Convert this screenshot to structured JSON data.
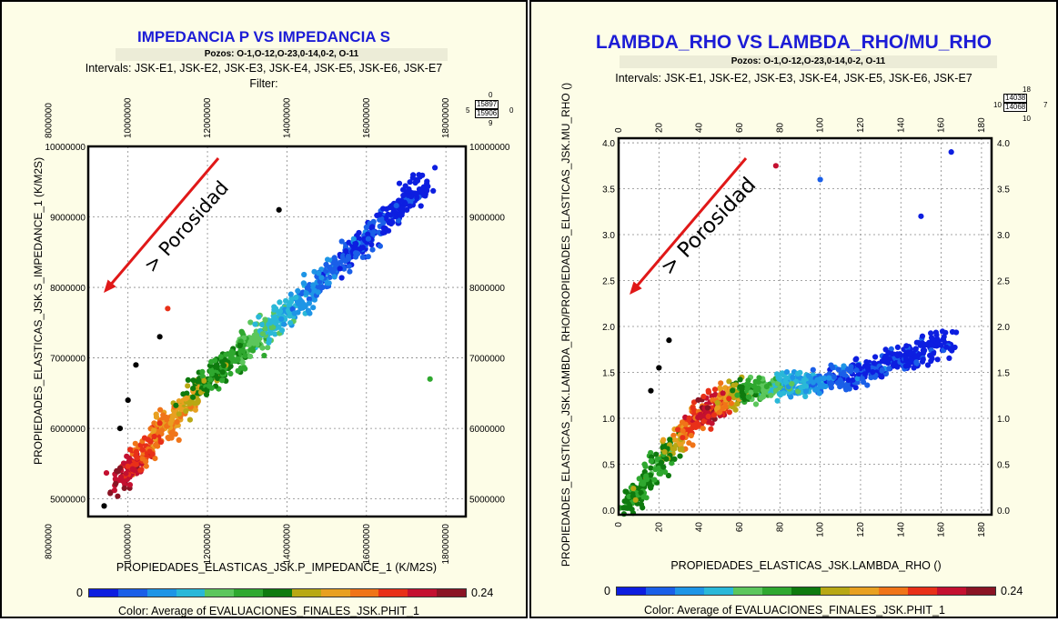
{
  "color_scale": {
    "min_label": "0",
    "max_label": "0.24",
    "colors": [
      "#0d1ee0",
      "#1a5fe8",
      "#1e95e6",
      "#2ab8d8",
      "#5cc65c",
      "#2fa82f",
      "#0e7a0e",
      "#b8a814",
      "#e8a020",
      "#f07418",
      "#e83018",
      "#c41030",
      "#8a1424"
    ]
  },
  "annotation_text": "> Porosidad",
  "annotation_color": "#e01818",
  "panels": [
    {
      "title": "IMPEDANCIA P VS IMPEDANCIA S",
      "pozos": "Pozos:  O-1,O-12,O-23,0-14,0-2, O-11",
      "intervals": "Intervals: JSK-E1, JSK-E2, JSK-E3, JSK-E4, JSK-E5, JSK-E6, JSK-E7",
      "filter": "Filter:",
      "counts": {
        "top": "0",
        "left": "5",
        "upper": "15897",
        "lower": "15906",
        "right": "0",
        "bottom": "9"
      },
      "xlabel": "PROPIEDADES_ELASTICAS_JSK.P_IMPEDANCE_1 (K/M2S)",
      "ylabel": "PROPIEDADES_ELASTICAS_JSK.S_IMPEDANCE_1 (K/M2S)",
      "color_caption": "Color: Average of EVALUACIONES_FINALES_JSK.PHIT_1"
    },
    {
      "title": "LAMBDA_RHO VS LAMBDA_RHO/MU_RHO",
      "pozos": "Pozos:  O-1,O-12,O-23,0-14,0-2, O-11",
      "intervals": "Intervals: JSK-E1, JSK-E2, JSK-E3, JSK-E4, JSK-E5, JSK-E6, JSK-E7",
      "counts": {
        "top": "18",
        "left": "10",
        "upper": "14038",
        "lower": "14068",
        "right": "7",
        "bottom": "10"
      },
      "xlabel": "PROPIEDADES_ELASTICAS_JSK.LAMBDA_RHO ()",
      "ylabel": "PROPIEDADES_ELASTICAS_JSK.LAMBDA_RHO/PROPIEDADES_ELASTICAS_JSK.MU_RHO ()",
      "color_caption": "Color:  Average of EVALUACIONES_FINALES_JSK.PHIT_1"
    }
  ],
  "chart_data": [
    {
      "type": "scatter",
      "title": "IMPEDANCIA P VS IMPEDANCIA S",
      "xlabel": "PROPIEDADES_ELASTICAS_JSK.P_IMPEDANCE_1 (K/M2S)",
      "ylabel": "PROPIEDADES_ELASTICAS_JSK.S_IMPEDANCE_1 (K/M2S)",
      "xlim": [
        9000000,
        18500000
      ],
      "ylim": [
        4750000,
        10000000
      ],
      "x_ticks": [
        8000000,
        10000000,
        12000000,
        14000000,
        16000000,
        18000000
      ],
      "x_tick_labels": [
        "8000000",
        "10000000",
        "12000000",
        "14000000",
        "16000000",
        "18000000"
      ],
      "y_ticks": [
        5000000,
        6000000,
        7000000,
        8000000,
        9000000,
        10000000
      ],
      "y_tick_labels": [
        "5000000",
        "6000000",
        "7000000",
        "8000000",
        "9000000",
        "10000000"
      ],
      "grid": true,
      "color_range": [
        0,
        0.24
      ],
      "trend": [
        {
          "x": 9700000,
          "y": 5200000,
          "phit": 0.22
        },
        {
          "x": 10500000,
          "y": 5700000,
          "phit": 0.19
        },
        {
          "x": 11200000,
          "y": 6200000,
          "phit": 0.16
        },
        {
          "x": 12000000,
          "y": 6700000,
          "phit": 0.12
        },
        {
          "x": 12900000,
          "y": 7100000,
          "phit": 0.1
        },
        {
          "x": 13700000,
          "y": 7500000,
          "phit": 0.07
        },
        {
          "x": 14600000,
          "y": 7950000,
          "phit": 0.04
        },
        {
          "x": 15600000,
          "y": 8500000,
          "phit": 0.02
        },
        {
          "x": 16600000,
          "y": 9000000,
          "phit": 0.01
        },
        {
          "x": 17500000,
          "y": 9500000,
          "phit": 0.0
        }
      ],
      "outliers": [
        {
          "x": 9400000,
          "y": 4900000,
          "phit": 0.24
        },
        {
          "x": 9800000,
          "y": 6000000,
          "phit": 0.24
        },
        {
          "x": 10000000,
          "y": 6400000,
          "phit": 0.24
        },
        {
          "x": 10200000,
          "y": 6900000,
          "phit": 0.24
        },
        {
          "x": 10800000,
          "y": 7300000,
          "phit": 0.24
        },
        {
          "x": 11000000,
          "y": 7700000,
          "phit": 0.2
        },
        {
          "x": 13800000,
          "y": 9100000,
          "phit": 0.24
        },
        {
          "x": 17600000,
          "y": 6700000,
          "phit": 0.1
        }
      ]
    },
    {
      "type": "scatter",
      "title": "LAMBDA_RHO VS LAMBDA_RHO/MU_RHO",
      "xlabel": "PROPIEDADES_ELASTICAS_JSK.LAMBDA_RHO ()",
      "ylabel": "PROPIEDADES_ELASTICAS_JSK.LAMBDA_RHO/PROPIEDADES_ELASTICAS_JSK.MU_RHO ()",
      "xlim": [
        0,
        185
      ],
      "ylim": [
        -0.05,
        4.05
      ],
      "x_ticks": [
        0,
        20,
        40,
        60,
        80,
        100,
        120,
        140,
        160,
        180
      ],
      "x_tick_labels": [
        "0",
        "20",
        "40",
        "60",
        "80",
        "100",
        "120",
        "140",
        "160",
        "180"
      ],
      "y_ticks": [
        0.0,
        0.5,
        1.0,
        1.5,
        2.0,
        2.5,
        3.0,
        3.5,
        4.0
      ],
      "y_tick_labels": [
        "0.0",
        "0.5",
        "1.0",
        "1.5",
        "2.0",
        "2.5",
        "3.0",
        "3.5",
        "4.0"
      ],
      "grid": true,
      "color_range": [
        0,
        0.24
      ],
      "trend": [
        {
          "x": 5,
          "y": 0.05,
          "phit": 0.12
        },
        {
          "x": 20,
          "y": 0.5,
          "phit": 0.1
        },
        {
          "x": 35,
          "y": 0.9,
          "phit": 0.18
        },
        {
          "x": 45,
          "y": 1.1,
          "phit": 0.22
        },
        {
          "x": 60,
          "y": 1.3,
          "phit": 0.12
        },
        {
          "x": 80,
          "y": 1.35,
          "phit": 0.07
        },
        {
          "x": 100,
          "y": 1.4,
          "phit": 0.04
        },
        {
          "x": 120,
          "y": 1.5,
          "phit": 0.02
        },
        {
          "x": 140,
          "y": 1.65,
          "phit": 0.01
        },
        {
          "x": 165,
          "y": 1.85,
          "phit": 0.0
        }
      ],
      "outliers": [
        {
          "x": 16,
          "y": 1.3,
          "phit": 0.24
        },
        {
          "x": 20,
          "y": 1.55,
          "phit": 0.24
        },
        {
          "x": 25,
          "y": 1.85,
          "phit": 0.24
        },
        {
          "x": 78,
          "y": 3.75,
          "phit": 0.22
        },
        {
          "x": 100,
          "y": 3.6,
          "phit": 0.02
        },
        {
          "x": 150,
          "y": 3.2,
          "phit": 0.0
        },
        {
          "x": 165,
          "y": 3.9,
          "phit": 0.0
        }
      ]
    }
  ]
}
